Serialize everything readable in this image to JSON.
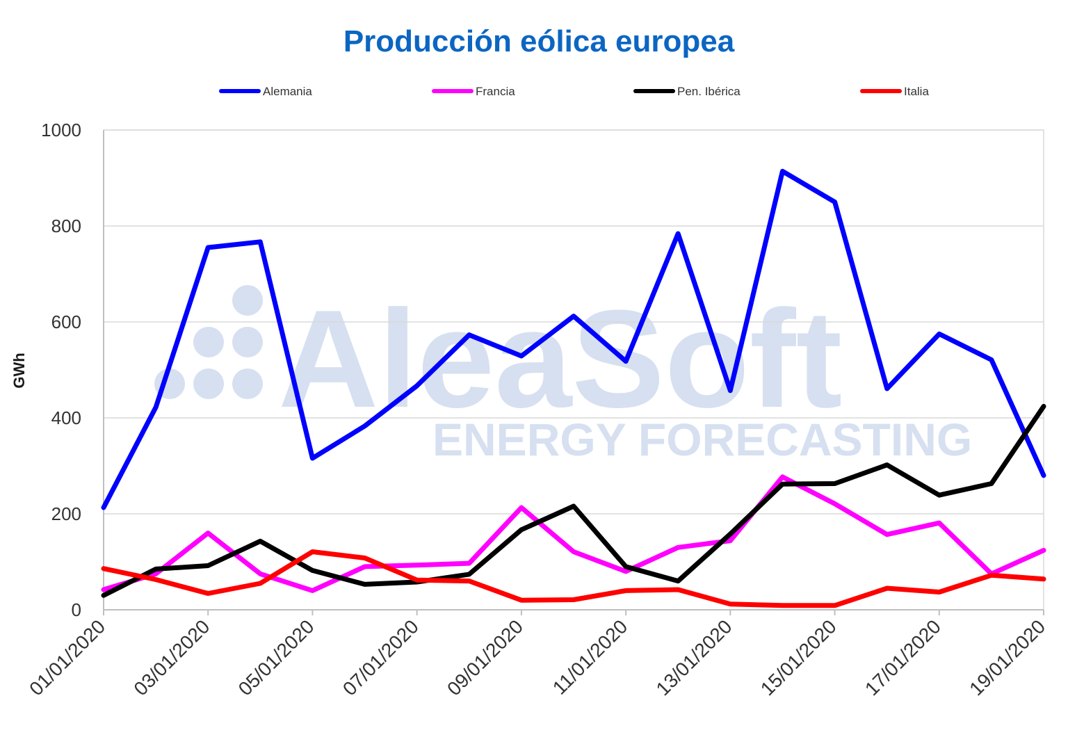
{
  "chart_data": {
    "type": "line",
    "title": "Producción eólica europea",
    "ylabel": "GWh",
    "xlabel": "",
    "ylim": [
      0,
      1000
    ],
    "yticks": [
      0,
      200,
      400,
      600,
      800,
      1000
    ],
    "ytick_labels": [
      "0",
      "200",
      "400",
      "600",
      "800",
      "1000"
    ],
    "x": [
      "01/01/2020",
      "02/01/2020",
      "03/01/2020",
      "04/01/2020",
      "05/01/2020",
      "06/01/2020",
      "07/01/2020",
      "08/01/2020",
      "09/01/2020",
      "10/01/2020",
      "11/01/2020",
      "12/01/2020",
      "13/01/2020",
      "14/01/2020",
      "15/01/2020",
      "16/01/2020",
      "17/01/2020",
      "18/01/2020",
      "19/01/2020"
    ],
    "xtick_labels": [
      "01/01/2020",
      "03/01/2020",
      "05/01/2020",
      "07/01/2020",
      "09/01/2020",
      "11/01/2020",
      "13/01/2020",
      "15/01/2020",
      "17/01/2020",
      "19/01/2020"
    ],
    "grid": true,
    "legend_position": "top",
    "series": [
      {
        "name": "Alemania",
        "color": "#0000FF",
        "values": [
          213,
          422,
          755,
          767,
          316,
          383,
          467,
          573,
          529,
          612,
          518,
          784,
          457,
          914,
          850,
          461,
          575,
          521,
          280
        ]
      },
      {
        "name": "Francia",
        "color": "#FF00FF",
        "values": [
          42,
          75,
          160,
          75,
          40,
          90,
          93,
          97,
          213,
          121,
          80,
          130,
          144,
          277,
          221,
          157,
          181,
          75,
          124
        ]
      },
      {
        "name": "Pen. Ibérica",
        "color": "#000000",
        "values": [
          30,
          85,
          92,
          143,
          82,
          53,
          58,
          74,
          167,
          216,
          90,
          60,
          158,
          262,
          263,
          302,
          239,
          263,
          424
        ]
      },
      {
        "name": "Italia",
        "color": "#FF0000",
        "values": [
          86,
          63,
          34,
          55,
          121,
          108,
          62,
          60,
          20,
          21,
          40,
          42,
          12,
          9,
          9,
          45,
          37,
          72,
          64
        ]
      }
    ],
    "title_color": "#0B66C2"
  },
  "watermark": {
    "brand": "AleaSoft",
    "tagline": "ENERGY FORECASTING",
    "color": "#D6E0F0"
  }
}
